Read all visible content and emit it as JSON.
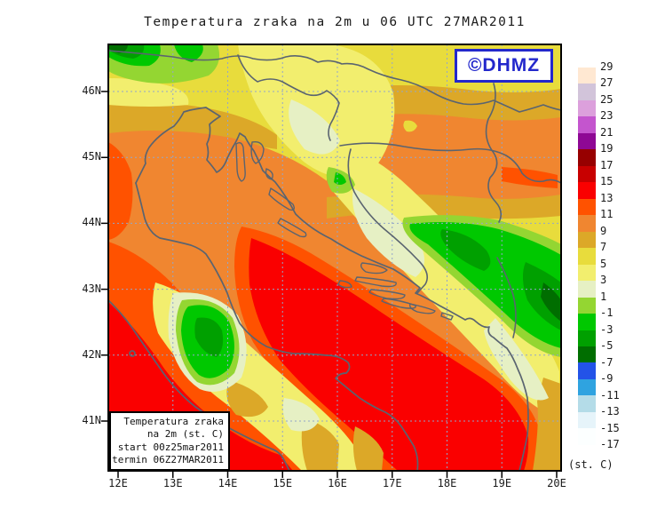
{
  "title": {
    "text": "Temperatura zraka na 2m u 06 UTC 27MAR2011"
  },
  "logo": {
    "text": "©DHMZ",
    "color": "#2328cc"
  },
  "info_box": {
    "lines": [
      "Temperatura zraka",
      "na 2m (st. C)",
      "start 00z25mar2011",
      "termin 06Z27MAR2011"
    ]
  },
  "axes": {
    "lat_labels": [
      "46N",
      "45N",
      "44N",
      "43N",
      "42N",
      "41N"
    ],
    "lon_labels": [
      "12E",
      "13E",
      "14E",
      "15E",
      "16E",
      "17E",
      "18E",
      "19E",
      "20E"
    ]
  },
  "colorbar": {
    "unit_label": "(st. C)",
    "tick_labels": [
      "29",
      "27",
      "25",
      "23",
      "21",
      "19",
      "17",
      "15",
      "13",
      "11",
      "9",
      "7",
      "5",
      "3",
      "1",
      "-1",
      "-3",
      "-5",
      "-7",
      "-9",
      "-11",
      "-13",
      "-15",
      "-17"
    ],
    "cell_colors": [
      "#FFE8D2",
      "#D2C4DA",
      "#DCA0DC",
      "#C455CE",
      "#8E0894",
      "#970000",
      "#C80000",
      "#FA0000",
      "#FF5200",
      "#F08630",
      "#DCA828",
      "#E8DC3C",
      "#F2EE6E",
      "#E6F0C4",
      "#94D632",
      "#00C800",
      "#00A000",
      "#006E00",
      "#2353E8",
      "#2FA3E0",
      "#B4DCE8",
      "#E6F4FA",
      "#FCFFFF"
    ]
  },
  "chart_data": {
    "type": "heatmap",
    "title": "Temperatura zraka na 2m u 06 UTC 27MAR2011",
    "unit": "st. C",
    "lon_range": [
      "12E",
      "20E"
    ],
    "lat_range": [
      "41N",
      "46N"
    ],
    "scale_ticks": [
      29,
      27,
      25,
      23,
      21,
      19,
      17,
      15,
      13,
      11,
      9,
      7,
      5,
      3,
      1,
      -1,
      -3,
      -5,
      -7,
      -9,
      -11,
      -13,
      -15,
      -17
    ],
    "legend_position": "right",
    "grid": "dashed lat/lon graticule",
    "regions": [
      {
        "area": "southern Adriatic sea",
        "temp_band_c": "13 to 15"
      },
      {
        "area": "Tyrrhenian sea (SW corner)",
        "temp_band_c": "13 to 15"
      },
      {
        "area": "Italian Adriatic coast",
        "temp_band_c": "11 to 13"
      },
      {
        "area": "northern Adriatic, Istria and Kvarner",
        "temp_band_c": "9 to 11"
      },
      {
        "area": "Slavonia / Sava valley (NE)",
        "temp_band_c": "9 to 11"
      },
      {
        "area": "NW Croatia and Slovenia inland",
        "temp_band_c": "3 to 7"
      },
      {
        "area": "Lika highlands (inland Dinaric belt)",
        "temp_band_c": "1 to 3"
      },
      {
        "area": "Bosnian mountains",
        "temp_band_c": "-1 to -5"
      },
      {
        "area": "Alps (NW corner)",
        "temp_band_c": "-1 to -7"
      },
      {
        "area": "Apennines (central Italy)",
        "temp_band_c": "-1 to -5"
      }
    ]
  }
}
